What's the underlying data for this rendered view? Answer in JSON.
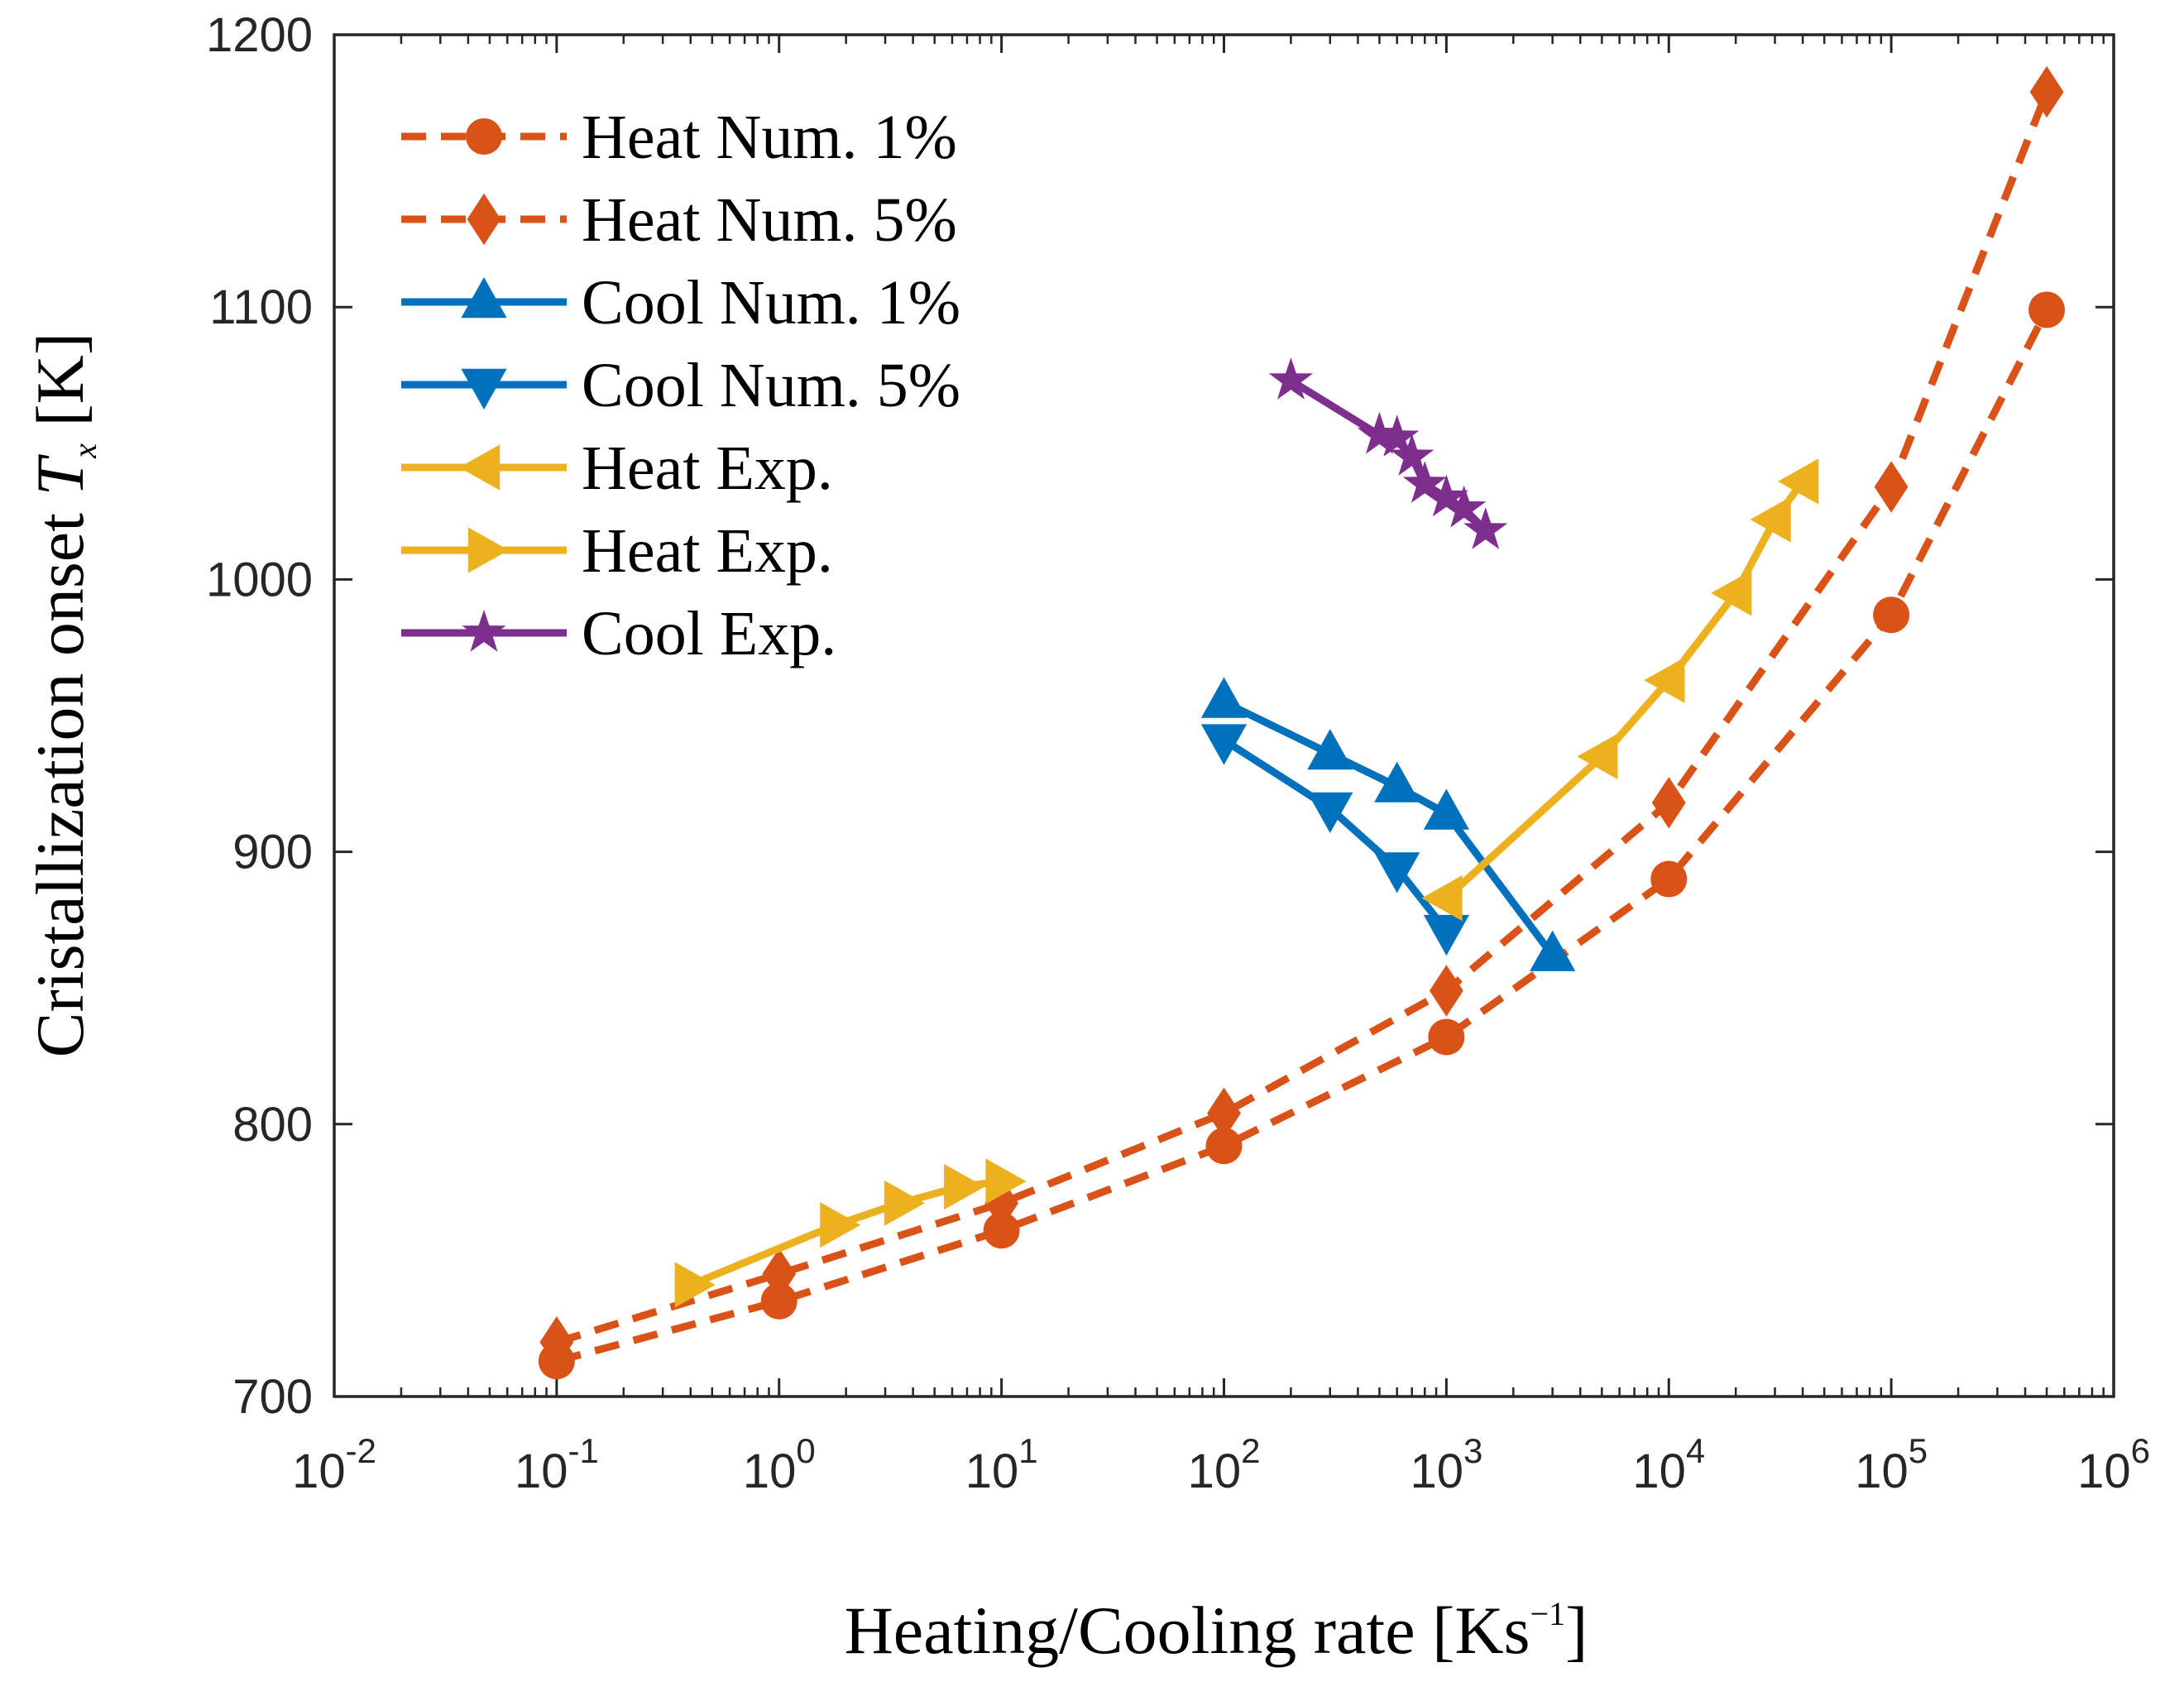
{
  "chart_data": {
    "type": "line",
    "xscale": "log",
    "xlim": [
      0.01,
      1000000
    ],
    "ylim": [
      700,
      1200
    ],
    "xlabel": "Heating/Cooling rate [Ks",
    "xlabel_sup": "−1",
    "xlabel_close": "]",
    "ylabel_pre": "Cristallization onset ",
    "ylabel_sym": "T",
    "ylabel_sub": "x",
    "ylabel_unit": " [K]",
    "xticks": [
      {
        "value": 0.01,
        "base": "10",
        "exp": "-2"
      },
      {
        "value": 0.1,
        "base": "10",
        "exp": "-1"
      },
      {
        "value": 1,
        "base": "10",
        "exp": "0"
      },
      {
        "value": 10,
        "base": "10",
        "exp": "1"
      },
      {
        "value": 100,
        "base": "10",
        "exp": "2"
      },
      {
        "value": 1000,
        "base": "10",
        "exp": "3"
      },
      {
        "value": 10000,
        "base": "10",
        "exp": "4"
      },
      {
        "value": 100000,
        "base": "10",
        "exp": "5"
      },
      {
        "value": 1000000,
        "base": "10",
        "exp": "6"
      }
    ],
    "yticks": [
      {
        "value": 700,
        "label": "700"
      },
      {
        "value": 800,
        "label": "800"
      },
      {
        "value": 900,
        "label": "900"
      },
      {
        "value": 1000,
        "label": "1000"
      },
      {
        "value": 1100,
        "label": "1100"
      },
      {
        "value": 1200,
        "label": "1200"
      }
    ],
    "legend_position": "top-left",
    "series": [
      {
        "name": "Heat Num. 1%",
        "color": "#D95319",
        "dash": "dashed",
        "marker": "circle",
        "x": [
          0.1,
          1,
          10,
          100,
          1000,
          10000,
          100000,
          500000
        ],
        "y": [
          713,
          735,
          761,
          792,
          832,
          890,
          987,
          1099
        ]
      },
      {
        "name": "Heat Num. 5%",
        "color": "#D95319",
        "dash": "dashed",
        "marker": "diamond",
        "x": [
          0.1,
          1,
          10,
          100,
          1000,
          10000,
          100000,
          500000
        ],
        "y": [
          720,
          745,
          771,
          804,
          849,
          918,
          1034,
          1179
        ]
      },
      {
        "name": "Cool Num. 1%",
        "color": "#0072BD",
        "dash": "solid",
        "marker": "triangle-up",
        "x": [
          100,
          300,
          600,
          1000,
          3000
        ],
        "y": [
          955,
          936,
          924,
          914,
          862
        ]
      },
      {
        "name": "Cool Num. 5%",
        "color": "#0072BD",
        "dash": "solid",
        "marker": "triangle-down",
        "x": [
          100,
          300,
          600,
          1000
        ],
        "y": [
          941,
          916,
          894,
          871
        ]
      },
      {
        "name": "Heat Exp.",
        "color": "#EDB120",
        "dash": "solid",
        "marker": "triangle-left",
        "x": [
          1000,
          5000,
          10000,
          20000,
          30000,
          40000
        ],
        "y": [
          883,
          935,
          963,
          995,
          1022,
          1036
        ]
      },
      {
        "name": "Heat Exp.",
        "color": "#EDB120",
        "dash": "solid",
        "marker": "triangle-right",
        "x": [
          0.4,
          1.8,
          3.5,
          6.5,
          10
        ],
        "y": [
          741,
          763,
          771,
          777,
          779
        ]
      },
      {
        "name": "Cool Exp.",
        "color": "#7E2F8E",
        "dash": "solid",
        "marker": "star",
        "x": [
          200,
          500,
          600,
          700,
          800,
          1000,
          1200,
          1500
        ],
        "y": [
          1073,
          1053,
          1052,
          1045,
          1035,
          1030,
          1026,
          1018
        ]
      }
    ]
  }
}
